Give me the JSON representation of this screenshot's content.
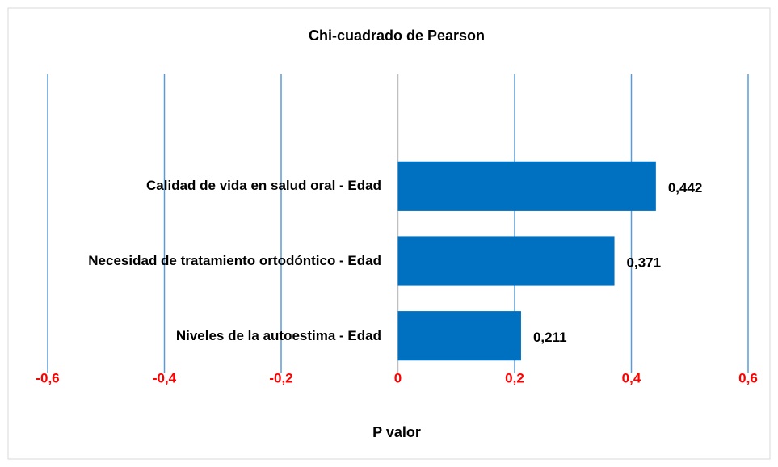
{
  "chart_data": {
    "type": "bar",
    "orientation": "horizontal",
    "title": "Chi-cuadrado de Pearson",
    "x_label": "P valor",
    "categories": [
      "Calidad de vida en salud oral - Edad",
      "Necesidad de tratamiento ortodóntico - Edad",
      "Niveles de la autoestima - Edad"
    ],
    "values": [
      0.442,
      0.371,
      0.211
    ],
    "value_labels": [
      "0,442",
      "0,371",
      "0,211"
    ],
    "color": "#0070c0",
    "xlim": [
      -0.6,
      0.6
    ],
    "xticks": [
      {
        "value": -0.6,
        "label": "-0,6"
      },
      {
        "value": -0.4,
        "label": "-0,4"
      },
      {
        "value": -0.2,
        "label": "-0,2"
      },
      0,
      {
        "value": 0.2,
        "label": "0,2"
      },
      {
        "value": 0.4,
        "label": "0,4"
      },
      {
        "value": 0.6,
        "label": "0,6"
      }
    ],
    "grid": true
  }
}
